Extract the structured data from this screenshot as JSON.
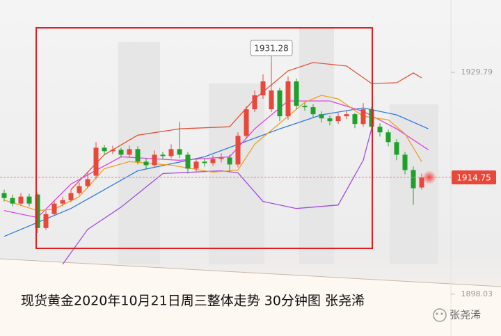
{
  "chart_data": {
    "type": "candlestick",
    "caption": "现货黄金2020年10月21日周三整体走势 30分钟图 张尧浠",
    "watermark": "张尧浠",
    "annotation": {
      "text": "1931.28",
      "index": 32
    },
    "ylim": [
      1892.04,
      1940.15
    ],
    "yticks": [
      1929.79,
      1898.03
    ],
    "last_price": 1914.75,
    "up_color": "#e8473a",
    "down_color": "#1fa02a",
    "opens": [
      1912.5,
      1911.8,
      1911.0,
      1912.0,
      1912.3,
      1907.5,
      1909.5,
      1911.0,
      1911.5,
      1912.5,
      1913.5,
      1915.0,
      1919.0,
      1918.5,
      1918.7,
      1918.0,
      1918.8,
      1917.0,
      1916.5,
      1918.0,
      1917.8,
      1918.8,
      1918.0,
      1916.0,
      1917.0,
      1916.8,
      1917.4,
      1917.6,
      1916.6,
      1920.7,
      1924.5,
      1926.5,
      1924.5,
      1927.2,
      1923.5,
      1928.5,
      1925.0,
      1924.8,
      1923.8,
      1923.2,
      1922.8,
      1923.5,
      1923.8,
      1922.4,
      1924.5,
      1922.0,
      1921.2,
      1919.8,
      1918.0,
      1915.8,
      1913.3
    ],
    "highs": [
      1913,
      1912.3,
      1912.5,
      1912.4,
      1912.6,
      1910,
      1911.5,
      1912,
      1913,
      1914,
      1915.5,
      1919.8,
      1919.4,
      1919.3,
      1919,
      1919.3,
      1919.2,
      1917.5,
      1918.6,
      1918.4,
      1919.5,
      1922.7,
      1918.4,
      1917.5,
      1917.4,
      1917.9,
      1918.2,
      1918,
      1921.2,
      1925,
      1927.2,
      1929.5,
      1931.28,
      1927.6,
      1929.2,
      1928.9,
      1925.4,
      1925.2,
      1924.2,
      1923.6,
      1924,
      1924.3,
      1924,
      1925.4,
      1924.8,
      1922.5,
      1921.6,
      1920.2,
      1918.4,
      1916.3,
      1915.3
    ],
    "lows": [
      1911.3,
      1910.6,
      1910.7,
      1910.6,
      1906.8,
      1907.2,
      1909.2,
      1910.6,
      1911.2,
      1912.2,
      1913.2,
      1914.5,
      1918,
      1918.1,
      1917.6,
      1917.6,
      1916.6,
      1916,
      1916.2,
      1917.4,
      1917.5,
      1917.5,
      1915.3,
      1915.6,
      1916.3,
      1916.4,
      1916.9,
      1915.5,
      1916.2,
      1920.3,
      1924.1,
      1926,
      1924.1,
      1922.8,
      1923,
      1924.5,
      1924.3,
      1923.3,
      1922.6,
      1922.2,
      1922.4,
      1923.1,
      1921.8,
      1922,
      1921.5,
      1920.6,
      1919.2,
      1917.2,
      1915.2,
      1910.8,
      1913
    ],
    "closes": [
      1911.8,
      1911.0,
      1912.0,
      1911.0,
      1907.5,
      1909.5,
      1911.0,
      1911.5,
      1912.5,
      1913.5,
      1914.5,
      1919.0,
      1918.5,
      1918.7,
      1918.0,
      1918.8,
      1917.0,
      1916.5,
      1918.0,
      1917.8,
      1918.8,
      1918.0,
      1916.0,
      1917.0,
      1916.8,
      1917.4,
      1917.6,
      1916.6,
      1920.7,
      1924.5,
      1926.5,
      1928.5,
      1927.2,
      1923.5,
      1928.5,
      1925.0,
      1924.8,
      1923.8,
      1923.2,
      1922.8,
      1923.5,
      1923.8,
      1922.4,
      1924.5,
      1922.0,
      1921.2,
      1919.8,
      1918.0,
      1915.8,
      1913.2,
      1914.75
    ],
    "lines": [
      {
        "color": "#e0533a",
        "x": [
          8,
          12,
          16,
          21,
          27,
          30,
          34,
          37,
          41,
          44,
          47,
          49,
          50
        ],
        "values": [
          1913,
          1918,
          1920.8,
          1921.7,
          1922.0,
          1926,
          1930.0,
          1931.2,
          1930.7,
          1928.2,
          1928.3,
          1929.7,
          1929.0
        ]
      },
      {
        "color": "#a24be0",
        "x": [
          7,
          10,
          14,
          19,
          26,
          28,
          31,
          35,
          40,
          43,
          44
        ],
        "values": [
          1902.3,
          1907.3,
          1910.5,
          1915.3,
          1915.7,
          1915.4,
          1911.3,
          1910.3,
          1910.8,
          1917.2,
          1921.7
        ]
      },
      {
        "color": "#2b7be0",
        "x": [
          0,
          8,
          16,
          24,
          33,
          38,
          43,
          47,
          50.8
        ],
        "values": [
          1906.3,
          1910.3,
          1915.7,
          1917.7,
          1921.7,
          1923.7,
          1924.7,
          1923.7,
          1921.7
        ]
      },
      {
        "color": "#e040e0",
        "x": [
          0,
          4,
          8,
          14,
          21,
          27,
          30,
          34,
          39,
          43,
          47,
          50.8
        ],
        "values": [
          1910,
          1909,
          1913.8,
          1917.7,
          1917.2,
          1917.7,
          1921.7,
          1925.7,
          1925.7,
          1924.2,
          1921.7,
          1918.7
        ]
      },
      {
        "color": "#f0a020",
        "x": [
          0,
          4,
          6,
          9,
          12,
          15,
          20,
          25,
          28,
          30,
          33,
          36,
          38,
          40,
          43,
          46,
          48,
          50
        ],
        "values": [
          1911.5,
          1910,
          1910.2,
          1912,
          1916,
          1917,
          1916.5,
          1915.5,
          1915.8,
          1919.5,
          1922.5,
          1925.5,
          1926.5,
          1926,
          1923.5,
          1923,
          1921,
          1917
        ]
      }
    ]
  }
}
